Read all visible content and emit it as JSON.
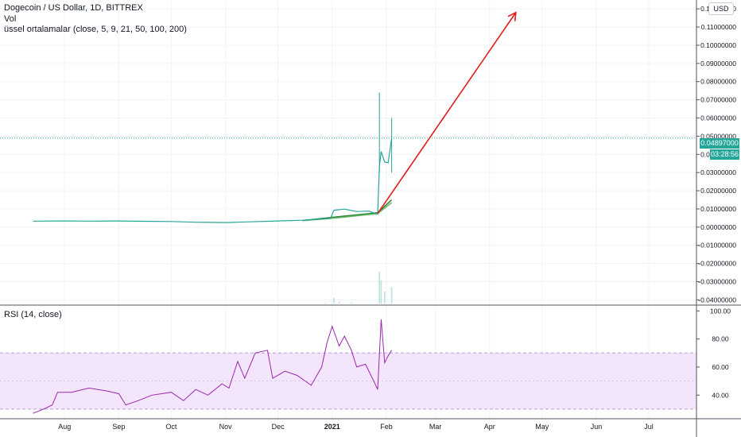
{
  "legend": {
    "title": "Dogecoin / US Dollar, 1D, BITTREX",
    "vol": "Vol",
    "ema": "üssel ortalamalar (close, 5, 9, 21, 50, 100, 200)",
    "rsi": "RSI (14, close)"
  },
  "currency": "USD",
  "last_price": "0.04897000",
  "countdown": "03:28:56",
  "colors": {
    "up": "#26a69a",
    "down": "#ef5350",
    "arrow": "#e31b1b",
    "rsi_line": "#9c27b0",
    "rsi_band": "#f3e5fb",
    "ema_dark": "#2e7d32",
    "ema_light": "#66bb6a"
  },
  "chart_data": [
    {
      "type": "line",
      "pane": "price",
      "symbol": "Dogecoin / US Dollar",
      "interval": "1D",
      "exchange": "BITTREX",
      "x_tick_labels": [
        "Aug",
        "Sep",
        "Oct",
        "Nov",
        "Dec",
        "2021",
        "Feb",
        "Mar",
        "Apr",
        "May",
        "Jun",
        "Jul"
      ],
      "y_tick_labels": [
        "0.12000000",
        "0.11000000",
        "0.10000000",
        "0.09000000",
        "0.08000000",
        "0.07000000",
        "0.06000000",
        "0.05000000",
        "0.04000000",
        "0.03000000",
        "0.02000000",
        "0.01000000",
        "0.00000000",
        "-0.01000000",
        "-0.02000000",
        "-0.03000000",
        "-0.04000000"
      ],
      "ylim": [
        -0.042,
        0.124
      ],
      "close": [
        [
          "2020-07-14",
          0.0033
        ],
        [
          "2020-08-01",
          0.0034
        ],
        [
          "2020-08-15",
          0.0033
        ],
        [
          "2020-09-01",
          0.0034
        ],
        [
          "2020-09-15",
          0.0032
        ],
        [
          "2020-10-01",
          0.0031
        ],
        [
          "2020-10-15",
          0.0027
        ],
        [
          "2020-11-01",
          0.0025
        ],
        [
          "2020-11-15",
          0.0029
        ],
        [
          "2020-12-01",
          0.0034
        ],
        [
          "2020-12-15",
          0.0038
        ],
        [
          "2020-12-31",
          0.0048
        ],
        [
          "2021-01-02",
          0.0093
        ],
        [
          "2021-01-08",
          0.0099
        ],
        [
          "2021-01-15",
          0.0086
        ],
        [
          "2021-01-22",
          0.0088
        ],
        [
          "2021-01-27",
          0.0072
        ],
        [
          "2021-01-28",
          0.0334
        ],
        [
          "2021-01-29",
          0.0416
        ],
        [
          "2021-01-31",
          0.0358
        ],
        [
          "2021-02-02",
          0.0354
        ],
        [
          "2021-02-04",
          0.0489
        ]
      ],
      "highs": [
        [
          "2021-01-28",
          0.074
        ],
        [
          "2021-02-04",
          0.06
        ]
      ],
      "ema_series": [
        {
          "name": "",
          "points": [
            [
              "2020-12-15",
              0.0036
            ],
            [
              "2021-01-05",
              0.0058
            ],
            [
              "2021-01-27",
              0.0079
            ],
            [
              "2021-02-04",
              0.015
            ]
          ]
        },
        {
          "name": "",
          "points": [
            [
              "2020-12-15",
              0.0035
            ],
            [
              "2021-01-05",
              0.0052
            ],
            [
              "2021-01-27",
              0.0074
            ],
            [
              "2021-02-04",
              0.0135
            ]
          ]
        }
      ],
      "annotation_arrow": {
        "from": [
          "2021-01-27",
          0.0075
        ],
        "to": [
          "2021-04-16",
          0.118
        ]
      },
      "volume": [
        [
          "2020-12-28",
          0.01
        ],
        [
          "2021-01-02",
          0.09
        ],
        [
          "2021-01-05",
          0.03
        ],
        [
          "2021-01-12",
          0.02
        ],
        [
          "2021-01-28",
          0.48
        ],
        [
          "2021-01-29",
          0.35
        ],
        [
          "2021-01-31",
          0.18
        ],
        [
          "2021-02-04",
          0.25
        ]
      ],
      "last_price": 0.04897
    },
    {
      "type": "line",
      "pane": "rsi",
      "title": "RSI (14, close)",
      "y_tick_labels": [
        "100.00",
        "80.00",
        "60.00",
        "40.00"
      ],
      "ylim": [
        26,
        103
      ],
      "band": [
        30,
        70
      ],
      "midline": 50,
      "values": [
        [
          "2020-07-14",
          27
        ],
        [
          "2020-07-20",
          30
        ],
        [
          "2020-07-25",
          33
        ],
        [
          "2020-07-28",
          42
        ],
        [
          "2020-08-05",
          42
        ],
        [
          "2020-08-15",
          45
        ],
        [
          "2020-08-25",
          43
        ],
        [
          "2020-09-01",
          41
        ],
        [
          "2020-09-05",
          33
        ],
        [
          "2020-09-12",
          36
        ],
        [
          "2020-09-20",
          40
        ],
        [
          "2020-10-01",
          42
        ],
        [
          "2020-10-08",
          36
        ],
        [
          "2020-10-15",
          44
        ],
        [
          "2020-10-22",
          40
        ],
        [
          "2020-10-30",
          48
        ],
        [
          "2020-11-03",
          45
        ],
        [
          "2020-11-08",
          64
        ],
        [
          "2020-11-12",
          52
        ],
        [
          "2020-11-18",
          70
        ],
        [
          "2020-11-25",
          72
        ],
        [
          "2020-11-28",
          52
        ],
        [
          "2020-12-05",
          57
        ],
        [
          "2020-12-12",
          54
        ],
        [
          "2020-12-20",
          47
        ],
        [
          "2020-12-26",
          60
        ],
        [
          "2020-12-29",
          77
        ],
        [
          "2021-01-01",
          89
        ],
        [
          "2021-01-05",
          75
        ],
        [
          "2021-01-08",
          82
        ],
        [
          "2021-01-12",
          72
        ],
        [
          "2021-01-15",
          60
        ],
        [
          "2021-01-20",
          62
        ],
        [
          "2021-01-24",
          52
        ],
        [
          "2021-01-27",
          44
        ],
        [
          "2021-01-29",
          94
        ],
        [
          "2021-01-31",
          63
        ],
        [
          "2021-02-02",
          68
        ],
        [
          "2021-02-04",
          72
        ]
      ]
    }
  ]
}
